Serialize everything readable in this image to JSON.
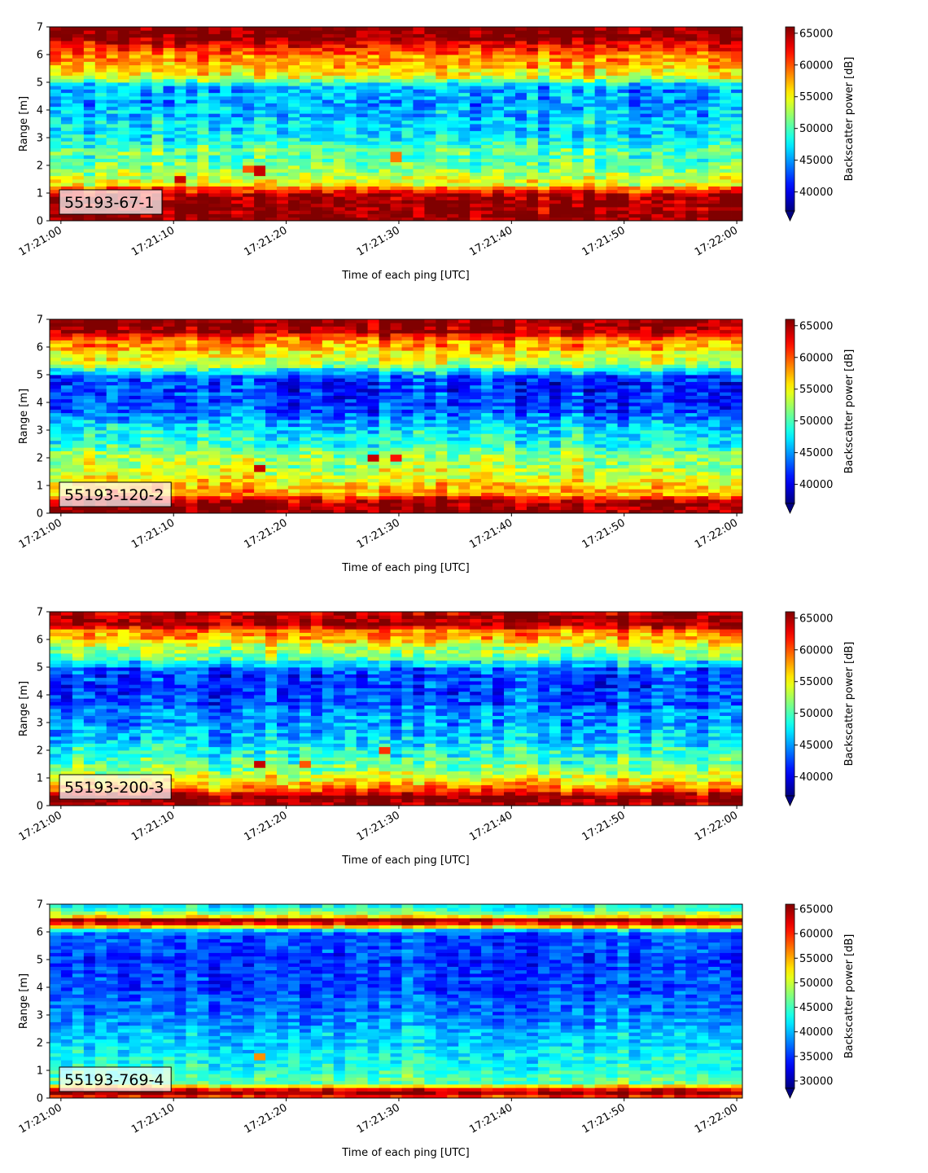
{
  "chart_data": [
    {
      "type": "heatmap",
      "panel_label": "55193-67-1",
      "xlabel": "Time of each ping [UTC]",
      "ylabel": "Range [m]",
      "x_tick_labels": [
        "17:21:00",
        "17:21:10",
        "17:21:20",
        "17:21:30",
        "17:21:40",
        "17:21:50",
        "17:22:00"
      ],
      "xlim": [
        "17:20:59",
        "17:22:00.5"
      ],
      "ylim": [
        0,
        7
      ],
      "y_ticks": [
        0,
        1,
        2,
        3,
        4,
        5,
        6,
        7
      ],
      "colorbar": {
        "label": "Backscatter power [dB]",
        "ticks": [
          40000,
          45000,
          50000,
          55000,
          60000,
          65000
        ],
        "range": [
          37000,
          66000
        ],
        "colormap": "jet",
        "extend": "min"
      },
      "profile": [
        [
          0,
          66000
        ],
        [
          0.3,
          66000
        ],
        [
          0.9,
          64500
        ],
        [
          1.1,
          61000
        ],
        [
          1.3,
          56000
        ],
        [
          1.8,
          52000
        ],
        [
          2.5,
          50000
        ],
        [
          3.2,
          47500
        ],
        [
          4.0,
          45500
        ],
        [
          4.8,
          45000
        ],
        [
          5.2,
          54000
        ],
        [
          5.6,
          57000
        ],
        [
          6.2,
          60500
        ],
        [
          6.6,
          65500
        ],
        [
          7,
          66000
        ]
      ],
      "noise_amplitude": 4500,
      "hotspots": [
        {
          "time": "17:21:11",
          "range": 1.5,
          "value": 64000
        },
        {
          "time": "17:21:18",
          "range": 1.8,
          "value": 64000
        },
        {
          "time": "17:21:17",
          "range": 1.9,
          "value": 60000
        },
        {
          "time": "17:21:30",
          "range": 2.3,
          "value": 59000
        }
      ]
    },
    {
      "type": "heatmap",
      "panel_label": "55193-120-2",
      "xlabel": "Time of each ping [UTC]",
      "ylabel": "Range [m]",
      "x_tick_labels": [
        "17:21:00",
        "17:21:10",
        "17:21:20",
        "17:21:30",
        "17:21:40",
        "17:21:50",
        "17:22:00"
      ],
      "xlim": [
        "17:20:59",
        "17:22:00.5"
      ],
      "ylim": [
        0,
        7
      ],
      "y_ticks": [
        0,
        1,
        2,
        3,
        4,
        5,
        6,
        7
      ],
      "colorbar": {
        "label": "Backscatter power [dB]",
        "ticks": [
          40000,
          45000,
          50000,
          55000,
          60000,
          65000
        ],
        "range": [
          37000,
          66000
        ],
        "colormap": "jet",
        "extend": "min"
      },
      "profile": [
        [
          0,
          66000
        ],
        [
          0.4,
          66000
        ],
        [
          0.7,
          58000
        ],
        [
          1.2,
          55000
        ],
        [
          2.0,
          52000
        ],
        [
          2.8,
          48000
        ],
        [
          3.6,
          44000
        ],
        [
          4.3,
          42000
        ],
        [
          4.9,
          42500
        ],
        [
          5.3,
          52000
        ],
        [
          5.8,
          56000
        ],
        [
          6.3,
          60000
        ],
        [
          6.6,
          65500
        ],
        [
          7,
          66000
        ]
      ],
      "noise_amplitude": 4500,
      "hotspots": [
        {
          "time": "17:21:18",
          "range": 1.6,
          "value": 64000
        },
        {
          "time": "17:21:28",
          "range": 2.0,
          "value": 64000
        },
        {
          "time": "17:21:30",
          "range": 2.0,
          "value": 62000
        }
      ]
    },
    {
      "type": "heatmap",
      "panel_label": "55193-200-3",
      "xlabel": "Time of each ping [UTC]",
      "ylabel": "Range [m]",
      "x_tick_labels": [
        "17:21:00",
        "17:21:10",
        "17:21:20",
        "17:21:30",
        "17:21:40",
        "17:21:50",
        "17:22:00"
      ],
      "xlim": [
        "17:20:59",
        "17:22:00.5"
      ],
      "ylim": [
        0,
        7
      ],
      "y_ticks": [
        0,
        1,
        2,
        3,
        4,
        5,
        6,
        7
      ],
      "colorbar": {
        "label": "Backscatter power [dB]",
        "ticks": [
          40000,
          45000,
          50000,
          55000,
          60000,
          65000
        ],
        "range": [
          37000,
          66000
        ],
        "colormap": "jet",
        "extend": "min"
      },
      "profile": [
        [
          0,
          64000
        ],
        [
          0.3,
          66000
        ],
        [
          0.6,
          60000
        ],
        [
          1.0,
          54000
        ],
        [
          1.6,
          50000
        ],
        [
          2.4,
          47000
        ],
        [
          3.2,
          44500
        ],
        [
          4.2,
          42000
        ],
        [
          4.9,
          43000
        ],
        [
          5.3,
          50000
        ],
        [
          5.8,
          54000
        ],
        [
          6.3,
          59000
        ],
        [
          6.6,
          65500
        ],
        [
          7,
          64000
        ]
      ],
      "noise_amplitude": 4500,
      "hotspots": [
        {
          "time": "17:21:18",
          "range": 1.5,
          "value": 64000
        },
        {
          "time": "17:21:22",
          "range": 1.5,
          "value": 60000
        },
        {
          "time": "17:21:29",
          "range": 2.0,
          "value": 61000
        }
      ]
    },
    {
      "type": "heatmap",
      "panel_label": "55193-769-4",
      "xlabel": "Time of each ping [UTC]",
      "ylabel": "Range [m]",
      "x_tick_labels": [
        "17:21:00",
        "17:21:10",
        "17:21:20",
        "17:21:30",
        "17:21:40",
        "17:21:50",
        "17:22:00"
      ],
      "xlim": [
        "17:20:59",
        "17:22:00.5"
      ],
      "ylim": [
        0,
        7
      ],
      "y_ticks": [
        0,
        1,
        2,
        3,
        4,
        5,
        6,
        7
      ],
      "colorbar": {
        "label": "Backscatter power [dB]",
        "ticks": [
          30000,
          35000,
          40000,
          45000,
          50000,
          55000,
          60000,
          65000
        ],
        "range": [
          28500,
          66000
        ],
        "colormap": "jet",
        "extend": "min"
      },
      "profile": [
        [
          0,
          56000
        ],
        [
          0.15,
          66000
        ],
        [
          0.35,
          61000
        ],
        [
          0.5,
          46000
        ],
        [
          1.0,
          44000
        ],
        [
          2.0,
          41000
        ],
        [
          3.0,
          38000
        ],
        [
          4.0,
          36000
        ],
        [
          5.0,
          35000
        ],
        [
          6.0,
          37000
        ],
        [
          6.3,
          62000
        ],
        [
          6.45,
          65000
        ],
        [
          6.6,
          50000
        ],
        [
          7,
          42000
        ]
      ],
      "noise_amplitude": 4500,
      "hotspots": [
        {
          "time": "17:21:18",
          "range": 1.5,
          "value": 56000
        }
      ]
    }
  ]
}
